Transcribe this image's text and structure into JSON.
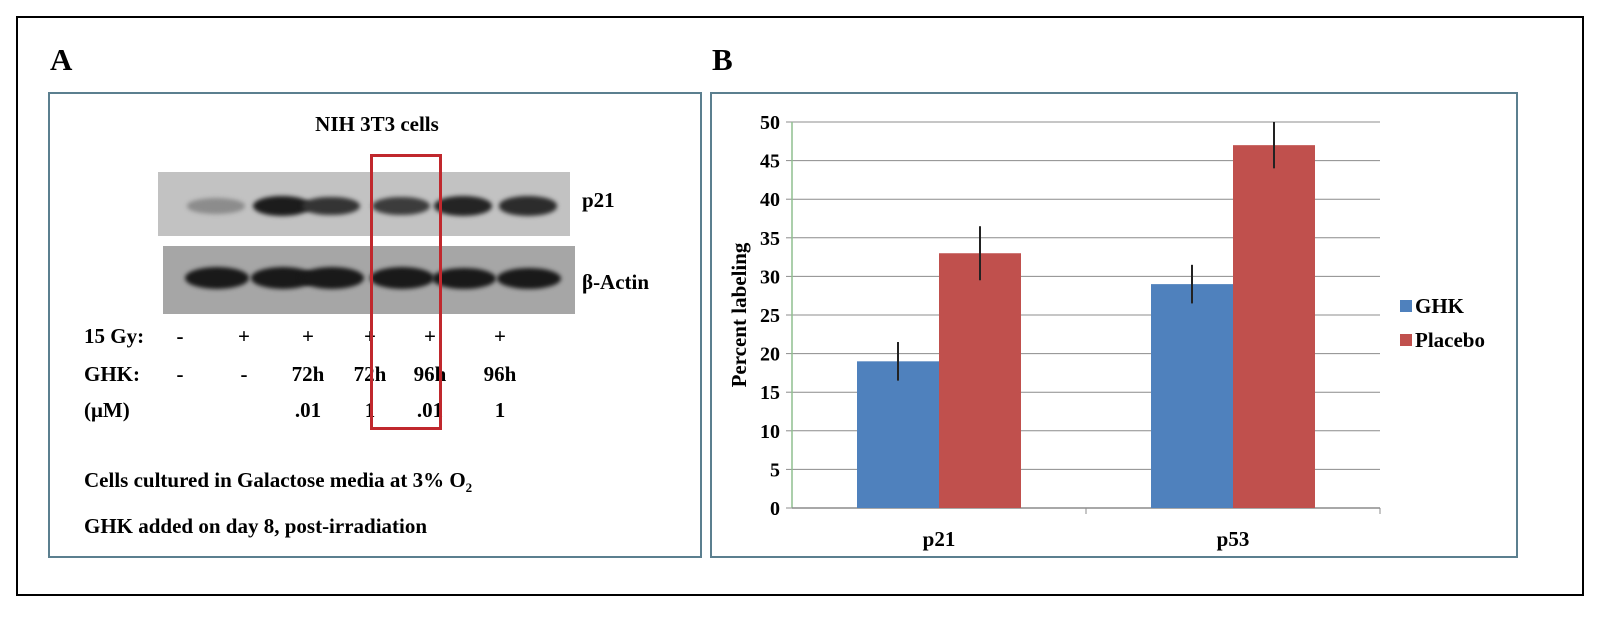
{
  "panel_a": {
    "letter": "A",
    "title": "NIH 3T3 cells",
    "blot_labels": [
      "p21",
      "β-Actin"
    ],
    "conditions": [
      {
        "label": "15 Gy:",
        "values": [
          "-",
          "+",
          "+",
          "+",
          "+",
          "+"
        ]
      },
      {
        "label": "GHK:",
        "values": [
          "-",
          "-",
          "72h",
          "72h",
          "96h",
          "96h"
        ]
      },
      {
        "label": "(μM)",
        "values": [
          "",
          "",
          ".01",
          "1",
          ".01",
          "1"
        ]
      }
    ],
    "p21_band_intensity": [
      0.25,
      0.95,
      0.8,
      0.75,
      0.9,
      0.85
    ],
    "actin_band_intensity": [
      1,
      1,
      1,
      1,
      0.95,
      0.95
    ],
    "highlight_color": "#c0282d",
    "note_line1": "Cells cultured in Galactose media at 3% O",
    "note_line1_sub": "2",
    "note_line2": "GHK added on day 8, post-irradiation"
  },
  "panel_b": {
    "letter": "B"
  },
  "chart_data": {
    "type": "bar",
    "categories": [
      "p21",
      "p53"
    ],
    "series": [
      {
        "name": "GHK",
        "values": [
          19,
          29
        ],
        "errors": [
          2.5,
          2.5
        ],
        "color": "#4f81bd"
      },
      {
        "name": "Placebo",
        "values": [
          33,
          47
        ],
        "errors": [
          3.5,
          3.0
        ],
        "color": "#c0504d"
      }
    ],
    "xlabel": "",
    "ylabel": "Percent labeling",
    "ylim": [
      0,
      50
    ],
    "yticks": [
      0,
      5,
      10,
      15,
      20,
      25,
      30,
      35,
      40,
      45,
      50
    ],
    "grid": true,
    "legend_position": "right"
  }
}
